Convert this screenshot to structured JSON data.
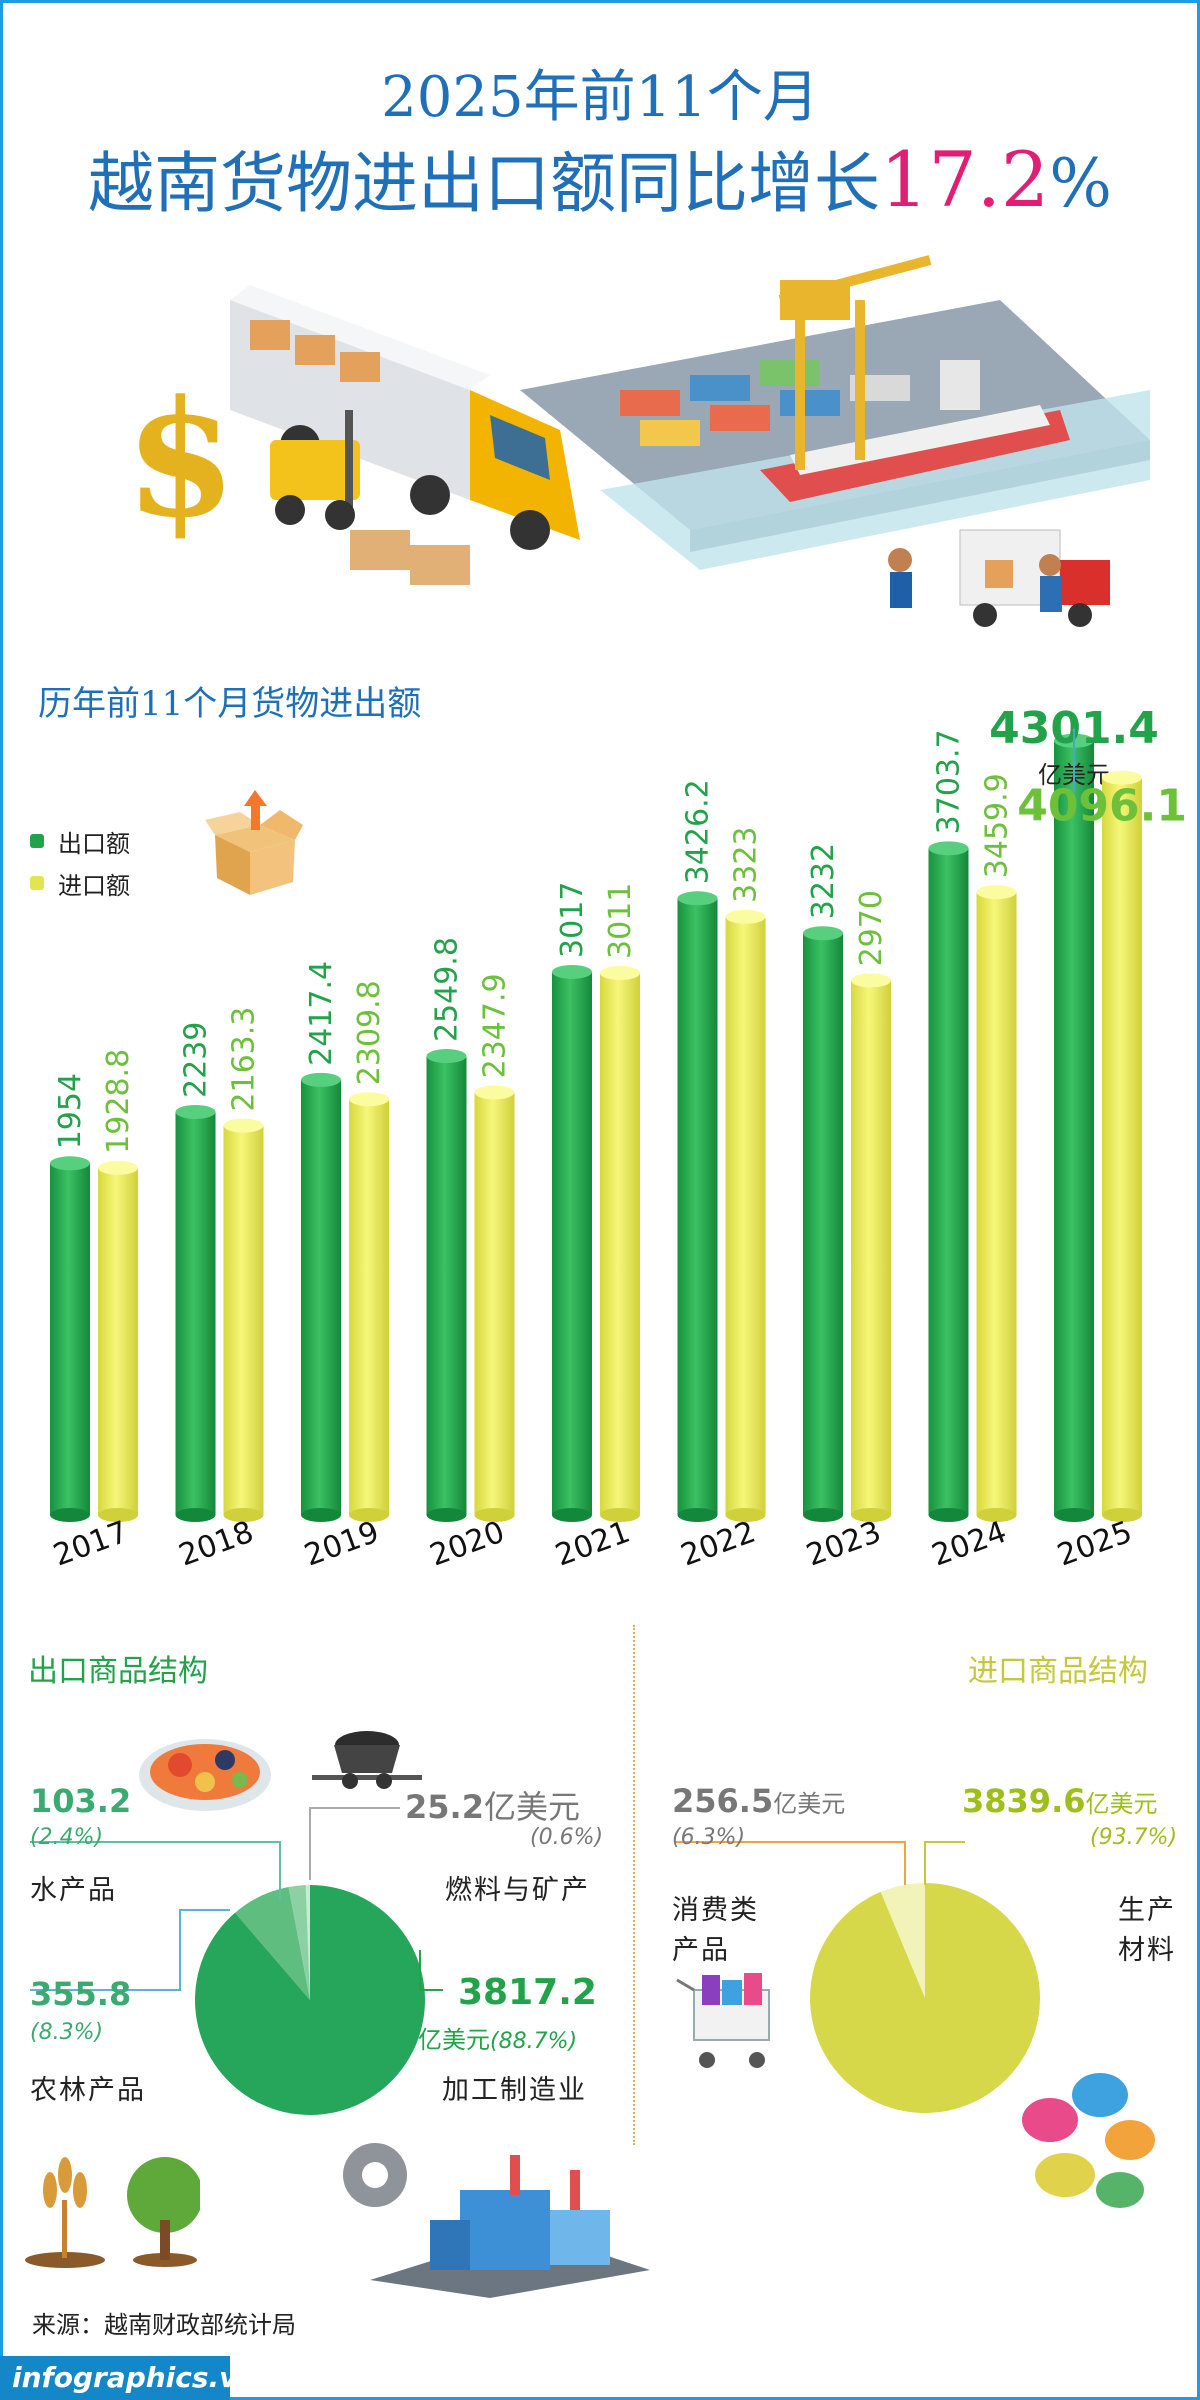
{
  "header": {
    "title_line1": "2025年前11个月",
    "title_line2_main": "越南货物进出口额同比增长",
    "title_line2_value": "17.2",
    "title_line2_unit": "%"
  },
  "illustrations": {
    "top": "logistics-port-truck-ship",
    "box": "open-box-icon",
    "seafood": "seafood-plate-icon",
    "coal": "coal-cart-icon",
    "wheat_tree": "wheat-and-tree-icon",
    "factory": "factory-gear-icon",
    "shopping_cart": "shopping-cart-icon",
    "threads": "thread-spools-icon"
  },
  "chart_data": {
    "type": "bar",
    "title": "历年前11个月货物进出额",
    "categories": [
      "2017",
      "2018",
      "2019",
      "2020",
      "2021",
      "2022",
      "2023",
      "2024",
      "2025"
    ],
    "series": [
      {
        "name": "出口额",
        "color": "#22a34a",
        "values": [
          1954,
          2239,
          2417.4,
          2549.8,
          3017,
          3426.2,
          3232,
          3703.7,
          4301.4
        ]
      },
      {
        "name": "进口额",
        "color": "#e3e54e",
        "values": [
          1928.8,
          2163.3,
          2309.8,
          2347.9,
          3011,
          3323,
          2970,
          3459.9,
          4096.1
        ]
      }
    ],
    "value_labels": {
      "export": [
        "1954",
        "2239",
        "2417.4",
        "2549.8",
        "3017",
        "3426.2",
        "3232",
        "3703.7",
        "4301.4"
      ],
      "import": [
        "1928.8",
        "2163.3",
        "2309.8",
        "2347.9",
        "3011",
        "3323",
        "2970",
        "3459.9",
        "4096.1"
      ]
    },
    "highlight_unit": "亿美元",
    "legend_position": "top-left",
    "grid": false
  },
  "export_structure": {
    "title": "出口商品结构",
    "items": [
      {
        "name": "水产品",
        "value": "103.2",
        "unit": "",
        "pct": "(2.4%)",
        "share": 2.4,
        "color": "#8cd0a4"
      },
      {
        "name": "燃料与矿产",
        "value": "25.2",
        "unit": "亿美元",
        "pct": "(0.6%)",
        "share": 0.6,
        "color": "#c7ebd3"
      },
      {
        "name": "农林产品",
        "value": "355.8",
        "unit": "",
        "pct": "(8.3%)",
        "share": 8.3,
        "color": "#5fbd80"
      },
      {
        "name": "加工制造业",
        "value": "3817.2",
        "unit": "亿美元",
        "pct": "(88.7%)",
        "share": 88.7,
        "color": "#26a65b"
      }
    ]
  },
  "import_structure": {
    "title": "进口商品结构",
    "items": [
      {
        "name_line1": "消费类",
        "name_line2": "产品",
        "value": "256.5",
        "unit": "亿美元",
        "pct": "(6.3%)",
        "share": 6.3,
        "color": "#f2f3b8"
      },
      {
        "name_line1": "生产",
        "name_line2": "材料",
        "value": "3839.6",
        "unit": "亿美元",
        "pct": "(93.7%)",
        "share": 93.7,
        "color": "#d6d84a"
      }
    ]
  },
  "footer": {
    "source": "来源：越南财政部统计局",
    "brand": "infographics.vn"
  }
}
